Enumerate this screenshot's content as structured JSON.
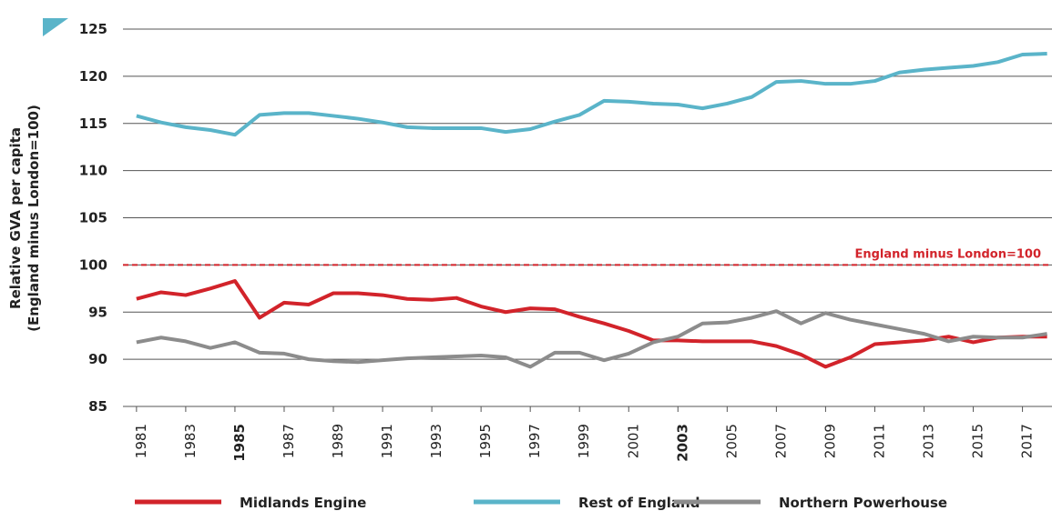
{
  "chart_data": {
    "type": "line",
    "ylabel": [
      "Relative GVA per capita",
      "(England minus London=100)"
    ],
    "x": [
      1981,
      1982,
      1983,
      1984,
      1985,
      1986,
      1987,
      1988,
      1989,
      1990,
      1991,
      1992,
      1993,
      1994,
      1995,
      1996,
      1997,
      1998,
      1999,
      2000,
      2001,
      2002,
      2003,
      2004,
      2005,
      2006,
      2007,
      2008,
      2009,
      2010,
      2011,
      2012,
      2013,
      2014,
      2015,
      2016,
      2017,
      2018
    ],
    "series": [
      {
        "name": "Midlands Engine",
        "color": "#d2232a",
        "values": [
          96.4,
          97.1,
          96.8,
          97.5,
          98.3,
          94.4,
          96.0,
          95.8,
          97.0,
          97.0,
          96.8,
          96.4,
          96.3,
          96.5,
          95.6,
          95.0,
          95.4,
          95.3,
          94.5,
          93.8,
          93.0,
          92.0,
          92.0,
          91.9,
          91.9,
          91.9,
          91.4,
          90.5,
          89.2,
          90.2,
          91.6,
          91.8,
          92.0,
          92.4,
          91.8,
          92.3,
          92.4,
          92.4
        ]
      },
      {
        "name": "Rest of England",
        "color": "#5ab4c9",
        "values": [
          115.8,
          115.1,
          114.6,
          114.3,
          113.8,
          115.9,
          116.1,
          116.1,
          115.8,
          115.5,
          115.1,
          114.6,
          114.5,
          114.5,
          114.5,
          114.1,
          114.4,
          115.2,
          115.9,
          117.4,
          117.3,
          117.1,
          117.0,
          116.6,
          117.1,
          117.8,
          119.4,
          119.5,
          119.2,
          119.2,
          119.5,
          120.4,
          120.7,
          120.9,
          121.1,
          121.5,
          122.3,
          122.4
        ]
      },
      {
        "name": "Northern Powerhouse",
        "color": "#8c8c8c",
        "values": [
          91.8,
          92.3,
          91.9,
          91.2,
          91.8,
          90.7,
          90.6,
          90.0,
          89.8,
          89.7,
          89.9,
          90.1,
          90.2,
          90.3,
          90.4,
          90.2,
          89.2,
          90.7,
          90.7,
          89.9,
          90.6,
          91.8,
          92.4,
          93.8,
          93.9,
          94.4,
          95.1,
          93.8,
          94.9,
          94.2,
          93.7,
          93.2,
          92.7,
          91.9,
          92.4,
          92.3,
          92.3,
          92.7
        ]
      }
    ],
    "xlim": [
      1980.45,
      2018.2
    ],
    "xticks": [
      1981,
      1983,
      1985,
      1987,
      1989,
      1991,
      1993,
      1995,
      1997,
      1999,
      2001,
      2003,
      2005,
      2007,
      2009,
      2011,
      2013,
      2015,
      2017
    ],
    "bold_xticks": [
      1985,
      2003
    ],
    "ylim": [
      85,
      125
    ],
    "yticks": [
      85,
      90,
      95,
      100,
      105,
      110,
      115,
      120,
      125
    ],
    "grid": true,
    "reference_line": {
      "value": 100,
      "label": "England minus London=100",
      "color": "#d2232a"
    },
    "legend": "bottom"
  }
}
